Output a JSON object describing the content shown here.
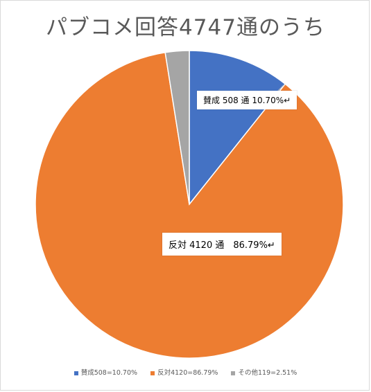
{
  "chart_data": {
    "type": "pie",
    "title": "パブコメ回答4747通のうち",
    "slices": [
      {
        "name": "賛成508=10.70%",
        "value": 508,
        "percent": 10.7,
        "color": "#4472c4",
        "label": "賛成 508 通 10.70%↵"
      },
      {
        "name": "反対4120=86.79%",
        "value": 4120,
        "percent": 86.79,
        "color": "#ed7d31",
        "label": "反対 4120 通　86.79%↵"
      },
      {
        "name": "その他119=2.51%",
        "value": 119,
        "percent": 2.51,
        "color": "#a5a5a5",
        "label": ""
      }
    ],
    "legend_position": "bottom"
  }
}
